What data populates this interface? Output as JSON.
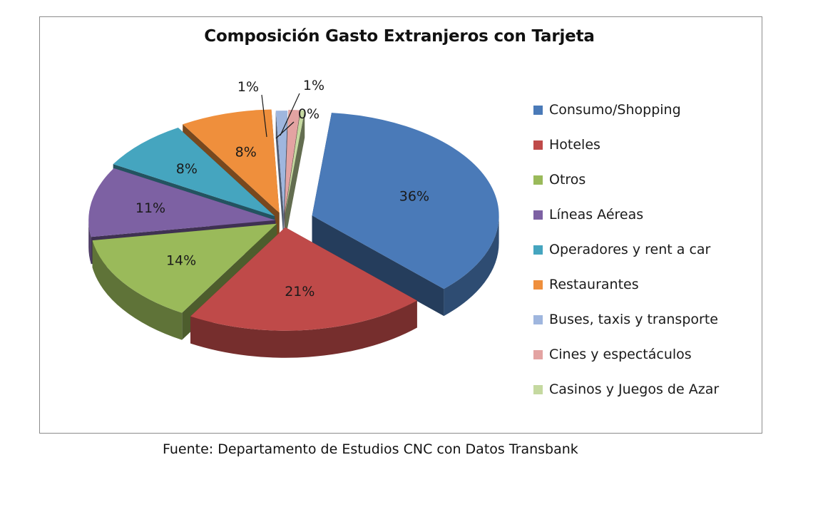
{
  "chart_data": {
    "type": "pie",
    "title": "Composición  Gasto Extranjeros con Tarjeta",
    "legend_position": "right",
    "three_d": true,
    "exploded": true,
    "slices": [
      {
        "label": "Consumo/Shopping",
        "value": 36,
        "value_label": "36%",
        "color": "#4a7ab8"
      },
      {
        "label": "Hoteles",
        "value": 21,
        "value_label": "21%",
        "color": "#bf4a49"
      },
      {
        "label": "Otros",
        "value": 14,
        "value_label": "14%",
        "color": "#9aba5a"
      },
      {
        "label": "Líneas Aéreas",
        "value": 11,
        "value_label": "11%",
        "color": "#7d61a3"
      },
      {
        "label": "Operadores y rent a car",
        "value": 8,
        "value_label": "8%",
        "color": "#45a5bf"
      },
      {
        "label": "Restaurantes",
        "value": 8,
        "value_label": "8%",
        "color": "#ef8f3c"
      },
      {
        "label": "Buses, taxis y transporte",
        "value": 1,
        "value_label": "1%",
        "color": "#9fb6de"
      },
      {
        "label": "Cines y espectáculos",
        "value": 1,
        "value_label": "1%",
        "color": "#e3a3a2"
      },
      {
        "label": "Casinos y Juegos de Azar",
        "value": 0,
        "value_label": "0%",
        "color": "#c5d9a0"
      }
    ]
  },
  "source_note": "Fuente: Departamento de Estudios CNC con Datos Transbank"
}
